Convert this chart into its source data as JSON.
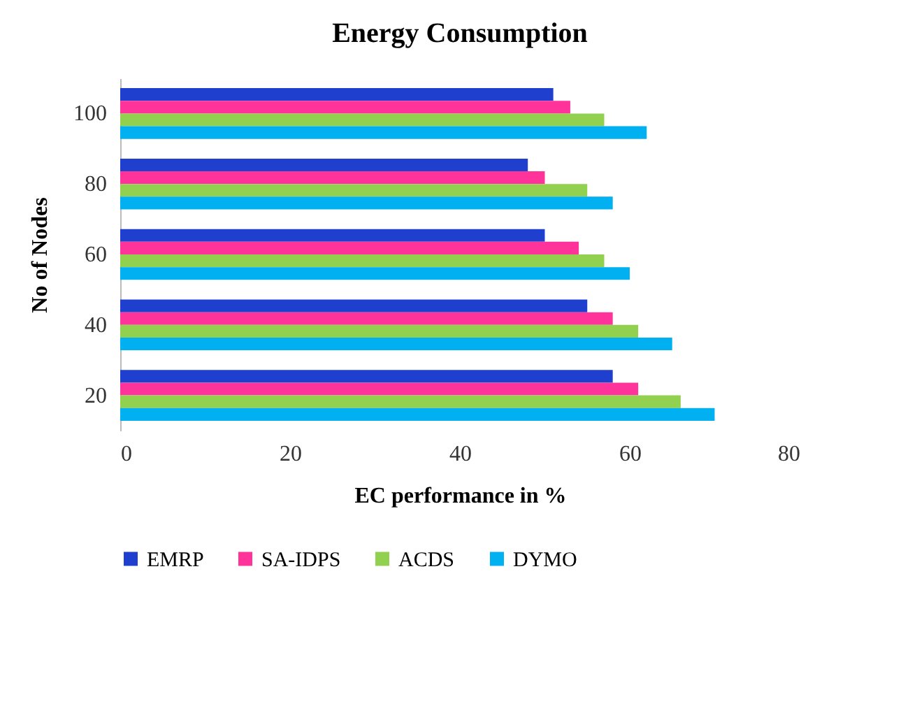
{
  "chart_data": {
    "type": "bar",
    "orientation": "horizontal",
    "title": "Energy Consumption",
    "xlabel": "EC performance in %",
    "ylabel": "No of Nodes",
    "categories": [
      "100",
      "80",
      "60",
      "40",
      "20"
    ],
    "series": [
      {
        "name": "EMRP",
        "color": "#1f3fcf",
        "values": [
          51,
          48,
          50,
          55,
          58
        ]
      },
      {
        "name": "SA-IDPS",
        "color": "#ff3399",
        "values": [
          53,
          50,
          54,
          58,
          61
        ]
      },
      {
        "name": "ACDS",
        "color": "#92d050",
        "values": [
          57,
          55,
          57,
          61,
          66
        ]
      },
      {
        "name": "DYMO",
        "color": "#00b0f0",
        "values": [
          62,
          58,
          60,
          65,
          70
        ]
      }
    ],
    "xlim": [
      0,
      80
    ],
    "xticks": [
      0,
      20,
      40,
      60,
      80
    ],
    "grid": false,
    "legend": "bottom"
  }
}
